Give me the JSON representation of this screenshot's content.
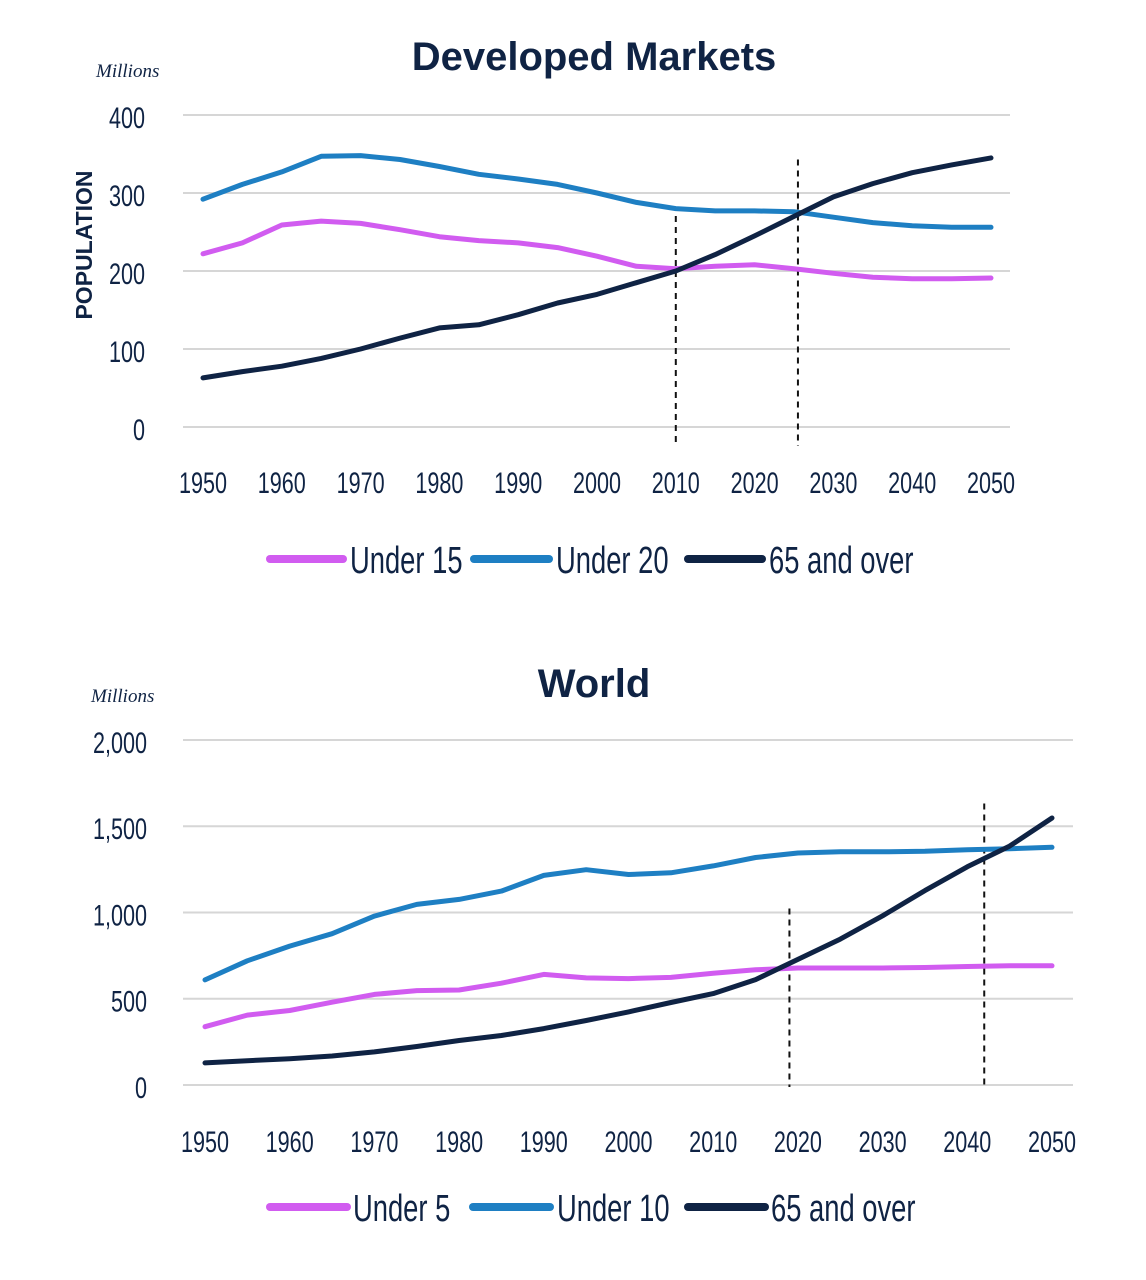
{
  "chart_data": [
    {
      "type": "line",
      "title": "Developed Markets",
      "units_label": "Millions",
      "ylabel": "POPULATION",
      "xlabel": "",
      "ylim": [
        0,
        400
      ],
      "yticks": [
        0,
        100,
        200,
        300,
        400
      ],
      "ytick_labels": [
        "0",
        "100",
        "200",
        "300",
        "400"
      ],
      "xlim": [
        1950,
        2050
      ],
      "xticks": [
        1950,
        1960,
        1970,
        1980,
        1990,
        2000,
        2010,
        2020,
        2030,
        2040,
        2050
      ],
      "grid": "horizontal",
      "legend_position": "bottom",
      "x": [
        1950,
        1955,
        1960,
        1965,
        1970,
        1975,
        1980,
        1985,
        1990,
        1995,
        2000,
        2005,
        2010,
        2015,
        2020,
        2025,
        2030,
        2035,
        2040,
        2045,
        2050
      ],
      "series": [
        {
          "name": "Under 15",
          "color": "#d15cf0",
          "values": [
            222,
            236,
            259,
            264,
            261,
            253,
            244,
            239,
            236,
            230,
            219,
            206,
            203,
            206,
            208,
            203,
            197,
            192,
            190,
            190,
            191
          ]
        },
        {
          "name": "Under 20",
          "color": "#1e7fc3",
          "values": [
            292,
            311,
            327,
            347,
            348,
            343,
            334,
            324,
            318,
            311,
            300,
            288,
            280,
            277,
            277,
            276,
            269,
            262,
            258,
            256,
            256
          ]
        },
        {
          "name": "65 and over",
          "color": "#0f2344",
          "values": [
            63,
            71,
            78,
            88,
            100,
            114,
            127,
            131,
            144,
            159,
            170,
            185,
            200,
            221,
            245,
            270,
            295,
            312,
            326,
            336,
            345
          ]
        }
      ],
      "reference_lines_x": [
        2010,
        2025.5
      ]
    },
    {
      "type": "line",
      "title": "World",
      "units_label": "Millions",
      "ylabel": "",
      "xlabel": "",
      "ylim": [
        0,
        2000
      ],
      "yticks": [
        0,
        500,
        1000,
        1500,
        2000
      ],
      "ytick_labels": [
        "0",
        "500",
        "1,000",
        "1,500",
        "2,000"
      ],
      "xlim": [
        1950,
        2050
      ],
      "xticks": [
        1950,
        1960,
        1970,
        1980,
        1990,
        2000,
        2010,
        2020,
        2030,
        2040,
        2050
      ],
      "grid": "horizontal",
      "legend_position": "bottom",
      "x": [
        1950,
        1955,
        1960,
        1965,
        1970,
        1975,
        1980,
        1985,
        1990,
        1995,
        2000,
        2005,
        2010,
        2015,
        2020,
        2025,
        2030,
        2035,
        2040,
        2045,
        2050
      ],
      "series": [
        {
          "name": "Under 5",
          "color": "#d15cf0",
          "values": [
            338,
            405,
            432,
            480,
            525,
            547,
            551,
            590,
            641,
            621,
            617,
            624,
            648,
            668,
            678,
            678,
            678,
            681,
            687,
            691,
            691
          ]
        },
        {
          "name": "Under 10",
          "color": "#1e7fc3",
          "values": [
            609,
            720,
            805,
            877,
            979,
            1047,
            1076,
            1124,
            1215,
            1248,
            1220,
            1230,
            1270,
            1319,
            1345,
            1352,
            1352,
            1355,
            1364,
            1370,
            1378
          ]
        },
        {
          "name": "65 and over",
          "color": "#0f2344",
          "values": [
            128,
            141,
            152,
            168,
            192,
            223,
            258,
            287,
            327,
            374,
            424,
            478,
            530,
            611,
            728,
            846,
            981,
            1127,
            1265,
            1385,
            1548
          ]
        }
      ],
      "reference_lines_x": [
        2019,
        2042
      ]
    }
  ]
}
